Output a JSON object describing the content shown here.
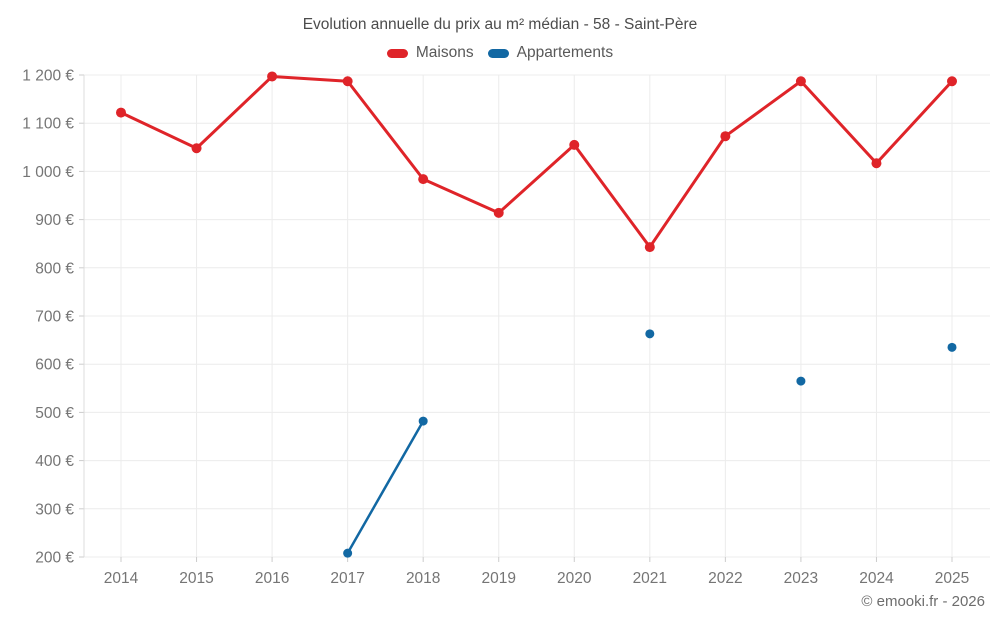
{
  "title": "Evolution annuelle du prix au m² médian - 58 - Saint-Père",
  "footer_credit": "© emooki.fr - 2026",
  "colors": {
    "maisons": "#df2429",
    "appartements": "#1268a3",
    "grid": "#ececec",
    "axis_line": "#dcdcdc",
    "tick": "#cccccc",
    "axis_text": "#757575",
    "title_text": "#4c4c4c"
  },
  "legend": {
    "items": [
      {
        "label": "Maisons",
        "color": "#df2429"
      },
      {
        "label": "Appartements",
        "color": "#1268a3"
      }
    ]
  },
  "chart_data": {
    "type": "line",
    "title": "Evolution annuelle du prix au m² médian - 58 - Saint-Père",
    "xlabel": "",
    "ylabel": "",
    "grid": true,
    "legend_position": "top",
    "categories": [
      "2014",
      "2015",
      "2016",
      "2017",
      "2018",
      "2019",
      "2020",
      "2021",
      "2022",
      "2023",
      "2024",
      "2025"
    ],
    "series": [
      {
        "name": "Maisons",
        "color": "#df2429",
        "line_width": 3,
        "point_radius": 5,
        "values": [
          1122,
          1048,
          1197,
          1187,
          984,
          914,
          1055,
          843,
          1073,
          1187,
          1017,
          1187
        ]
      },
      {
        "name": "Appartements",
        "color": "#1268a3",
        "line_width": 2.5,
        "point_radius": 4.5,
        "values": [
          null,
          null,
          null,
          208,
          482,
          null,
          null,
          663,
          null,
          565,
          null,
          635
        ]
      }
    ],
    "ylim": [
      200,
      1200
    ],
    "y_ticks": [
      {
        "value": 1200,
        "label": "1 200 €"
      },
      {
        "value": 1100,
        "label": "1 100 €"
      },
      {
        "value": 1000,
        "label": "1 000 €"
      },
      {
        "value": 900,
        "label": "900 €"
      },
      {
        "value": 800,
        "label": "800 €"
      },
      {
        "value": 700,
        "label": "700 €"
      },
      {
        "value": 600,
        "label": "600 €"
      },
      {
        "value": 500,
        "label": "500 €"
      },
      {
        "value": 400,
        "label": "400 €"
      },
      {
        "value": 300,
        "label": "300 €"
      },
      {
        "value": 200,
        "label": "200 €"
      }
    ]
  }
}
